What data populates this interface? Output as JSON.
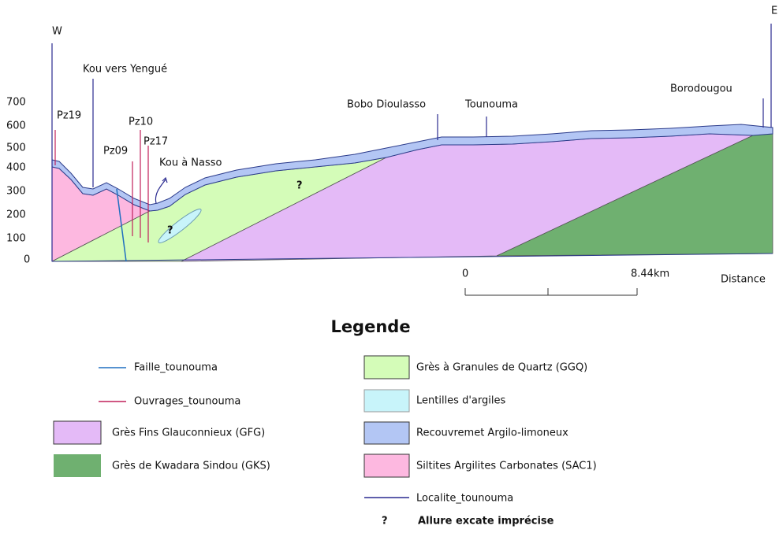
{
  "section": {
    "west": "W",
    "east": "E",
    "localities": [
      "Kou vers Yengué",
      "Kou à Nasso",
      "Bobo Dioulasso",
      "Tounouma",
      "Borodougou"
    ],
    "wells": [
      "Pz19",
      "Pz10",
      "Pz09",
      "Pz17"
    ],
    "uncertain": [
      "?",
      "?"
    ],
    "elevation_labels": [
      700,
      600,
      500,
      400,
      300,
      200,
      100,
      0
    ],
    "scale": {
      "start": "0",
      "end": "8.44km",
      "axis": "Distance"
    }
  },
  "legend": {
    "title": "Legende",
    "items": [
      "Faille_tounouma",
      "Ouvrages_tounouma",
      "Grès Fins Glauconnieux (GFG)",
      "Grès de Kwadara Sindou (GKS)",
      "Grès à Granules de Quartz (GGQ)",
      "Lentilles d'argiles",
      "Recouvremet Argilo-limoneux",
      "Siltites Argilites Carbonates (SAC1)",
      "Localite_tounouma"
    ],
    "note_symbol": "?",
    "note": "Allure excate imprécise"
  }
}
